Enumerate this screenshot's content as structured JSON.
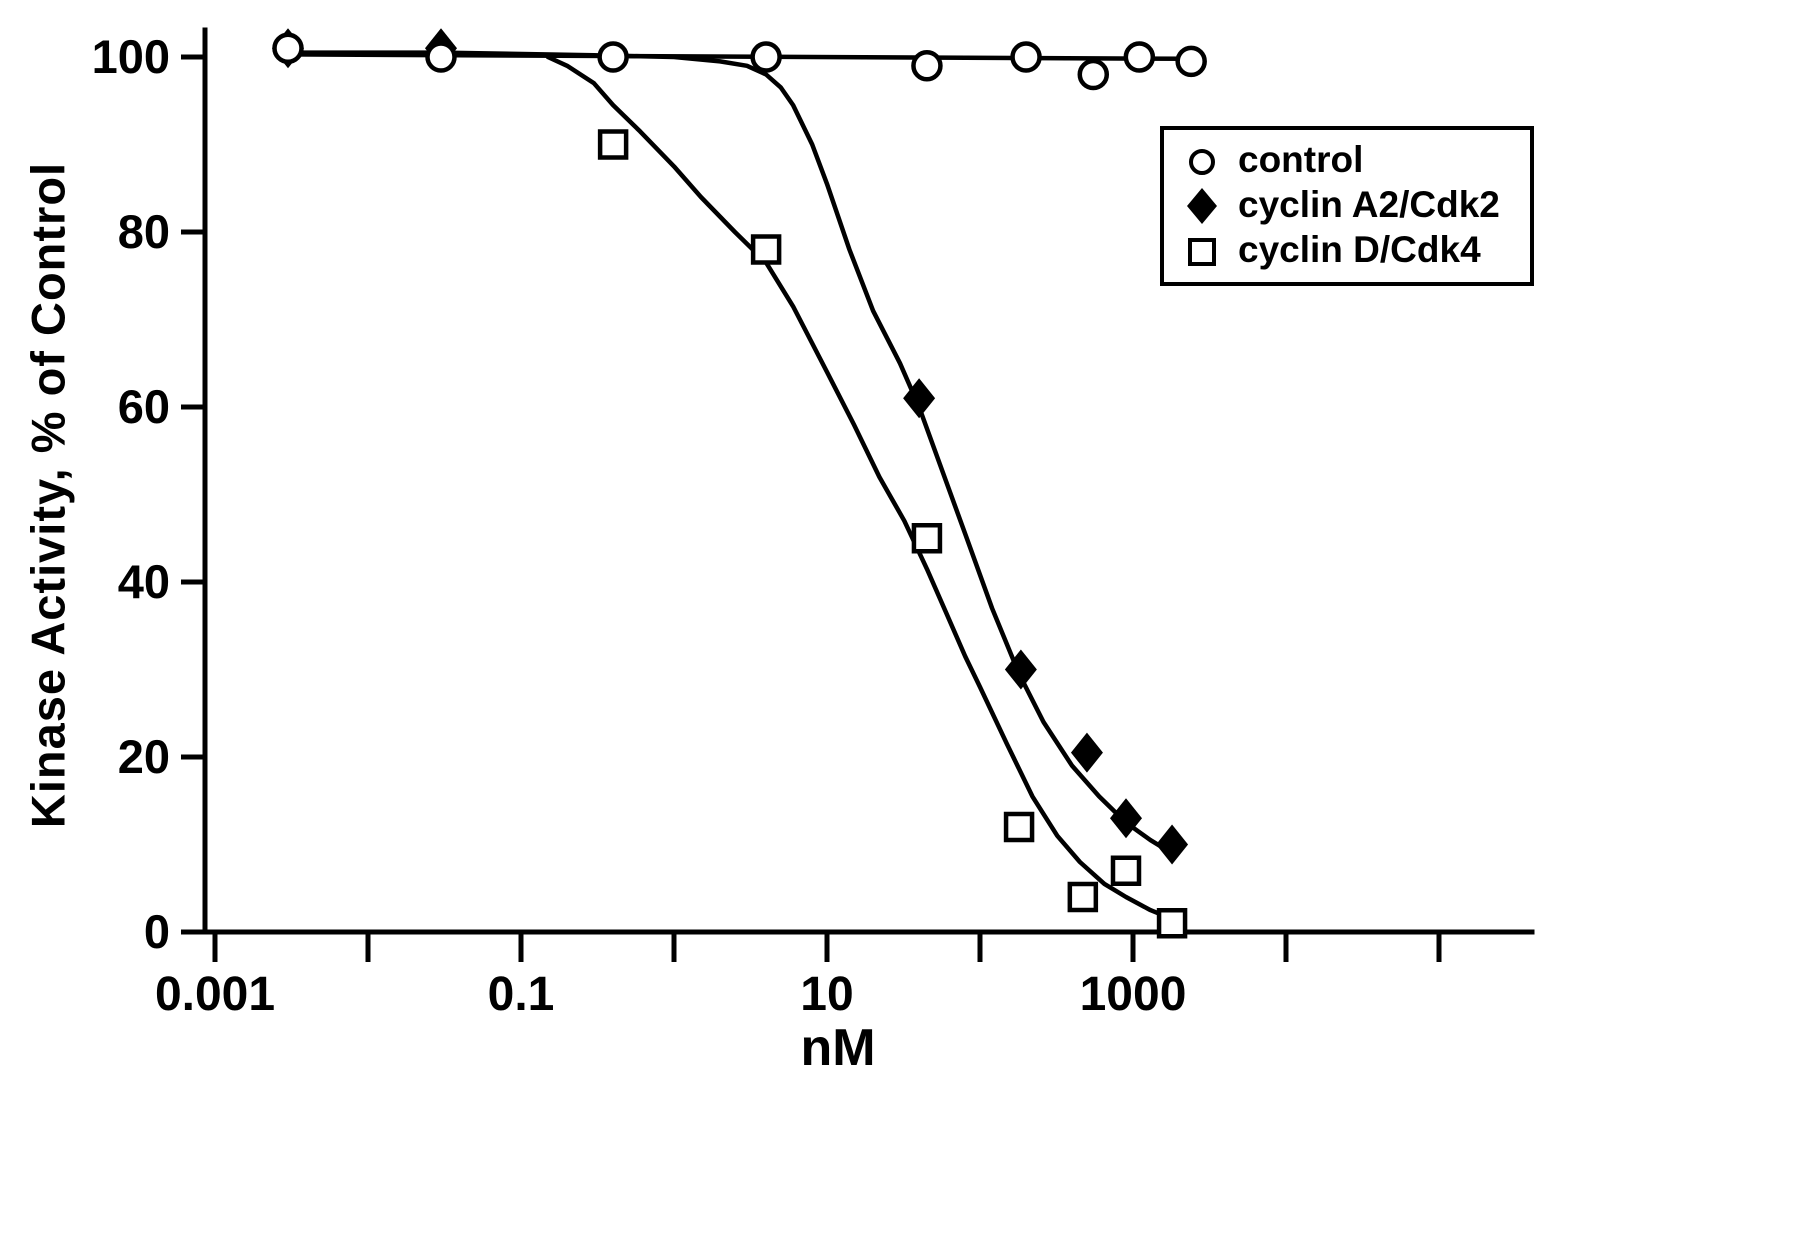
{
  "chart_data": {
    "type": "line",
    "title": "",
    "xlabel": "nM",
    "ylabel": "Kinase Activity, % of Control",
    "x_scale": "log",
    "xlim": [
      0.001,
      100000
    ],
    "ylim": [
      0,
      100
    ],
    "grid": false,
    "legend_position": "top-right",
    "x_ticks": [
      {
        "v": 0.001,
        "label": "0.001"
      },
      {
        "v": 0.01,
        "label": ""
      },
      {
        "v": 0.1,
        "label": "0.1"
      },
      {
        "v": 1,
        "label": ""
      },
      {
        "v": 10,
        "label": "10"
      },
      {
        "v": 100,
        "label": ""
      },
      {
        "v": 1000,
        "label": "1000"
      },
      {
        "v": 10000,
        "label": ""
      },
      {
        "v": 100000,
        "label": ""
      }
    ],
    "y_ticks": [
      0,
      20,
      40,
      60,
      80,
      100
    ],
    "series": [
      {
        "name": "cyclin A2/Cdk2",
        "marker": "diamond-filled",
        "points": [
          [
            0.003,
            101
          ],
          [
            0.03,
            101
          ],
          [
            40,
            61
          ],
          [
            185,
            30
          ],
          [
            500,
            20.5
          ],
          [
            900,
            13
          ],
          [
            1800,
            10
          ]
        ],
        "curve": [
          [
            0.003,
            100.5
          ],
          [
            0.03,
            100.5
          ],
          [
            0.3,
            100.2
          ],
          [
            1,
            100
          ],
          [
            2,
            99.5
          ],
          [
            3,
            99
          ],
          [
            4,
            98
          ],
          [
            5,
            96.5
          ],
          [
            6,
            94.5
          ],
          [
            8,
            90
          ],
          [
            10,
            85.5
          ],
          [
            14,
            78
          ],
          [
            20,
            71
          ],
          [
            30,
            65
          ],
          [
            40,
            60
          ],
          [
            60,
            51.5
          ],
          [
            80,
            45.5
          ],
          [
            120,
            37
          ],
          [
            180,
            29.5
          ],
          [
            260,
            24
          ],
          [
            400,
            19
          ],
          [
            600,
            15.5
          ],
          [
            900,
            12.5
          ],
          [
            1300,
            10.5
          ],
          [
            1800,
            9
          ]
        ]
      },
      {
        "name": "cyclin D/Cdk4",
        "marker": "square-open",
        "points": [
          [
            0.4,
            90
          ],
          [
            4,
            78
          ],
          [
            45,
            45
          ],
          [
            180,
            12
          ],
          [
            470,
            4
          ],
          [
            900,
            7
          ],
          [
            1800,
            1
          ]
        ],
        "curve": [
          [
            0.15,
            100
          ],
          [
            0.2,
            99
          ],
          [
            0.3,
            97
          ],
          [
            0.4,
            94.5
          ],
          [
            0.6,
            91.5
          ],
          [
            1,
            87.5
          ],
          [
            1.5,
            84
          ],
          [
            2.5,
            80
          ],
          [
            4,
            76.5
          ],
          [
            6,
            71.5
          ],
          [
            10,
            64
          ],
          [
            15,
            58
          ],
          [
            22,
            52
          ],
          [
            32,
            47
          ],
          [
            45,
            41.5
          ],
          [
            60,
            36.5
          ],
          [
            80,
            31.5
          ],
          [
            100,
            28
          ],
          [
            150,
            21.5
          ],
          [
            220,
            15.5
          ],
          [
            320,
            11
          ],
          [
            450,
            8
          ],
          [
            650,
            5.5
          ],
          [
            900,
            4
          ],
          [
            1300,
            2.5
          ],
          [
            1800,
            1.5
          ]
        ]
      },
      {
        "name": "control",
        "marker": "circle-open",
        "points": [
          [
            0.003,
            101
          ],
          [
            0.03,
            100
          ],
          [
            0.4,
            100
          ],
          [
            4,
            100
          ],
          [
            45,
            99
          ],
          [
            200,
            100
          ],
          [
            550,
            98
          ],
          [
            1100,
            100
          ],
          [
            2400,
            99.5
          ]
        ],
        "curve": [
          [
            0.003,
            100.3
          ],
          [
            2400,
            99.8
          ]
        ]
      }
    ],
    "legend": [
      {
        "label": "control",
        "marker": "circle-open"
      },
      {
        "label": "cyclin A2/Cdk2",
        "marker": "diamond-filled"
      },
      {
        "label": "cyclin D/Cdk4",
        "marker": "square-open"
      }
    ]
  }
}
